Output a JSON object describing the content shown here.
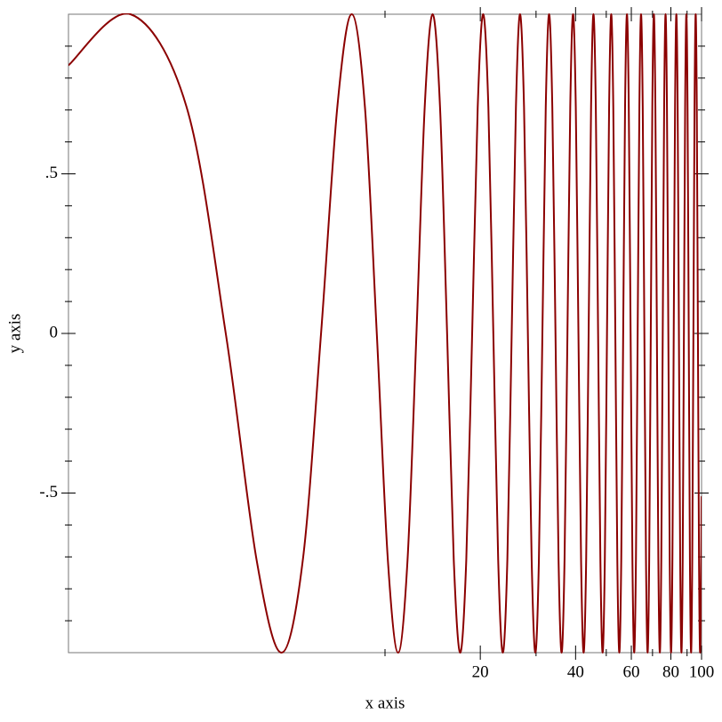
{
  "chart_data": {
    "type": "line",
    "xlabel": "x axis",
    "ylabel": "y axis",
    "xscale": "log",
    "color": "#8b0000",
    "xlim": [
      1,
      100
    ],
    "ylim": [
      -1,
      1
    ],
    "xticks": [
      20,
      40,
      60,
      80,
      100
    ],
    "xminorticks": [
      10,
      30,
      50,
      70,
      90
    ],
    "yticks": [
      {
        "value": -0.5,
        "label": "-.5"
      },
      0,
      {
        "value": 0.5,
        "label": ".5"
      }
    ],
    "yminorticks": [
      -0.9,
      -0.8,
      -0.7,
      -0.6,
      -0.4,
      -0.3,
      -0.2,
      -0.1,
      0.1,
      0.2,
      0.3,
      0.4,
      0.6,
      0.7,
      0.8,
      0.9
    ],
    "x": [
      1,
      1.57,
      2.36,
      3.14,
      3.93,
      4.71,
      5.5,
      6.28,
      7.07,
      7.85,
      8.64,
      9.42,
      10.21,
      11.0,
      11.78,
      12.57,
      13.35,
      14.14,
      14.92,
      15.71,
      16.49,
      17.28,
      18.06,
      18.85,
      19.63,
      20.42,
      21.21,
      21.99,
      22.78,
      23.56,
      24.35,
      25.13,
      25.92,
      26.7,
      27.49,
      28.27,
      29.06,
      29.85,
      30.63,
      31.42,
      32.2,
      32.99,
      33.77,
      34.56,
      35.34,
      36.13,
      36.91,
      37.7,
      38.48,
      39.27,
      40.06,
      40.84,
      41.63,
      42.41,
      43.2,
      43.98,
      44.77,
      45.55,
      46.34,
      47.12,
      47.91,
      48.69,
      49.48,
      50.27,
      51.05,
      51.84,
      52.62,
      53.41,
      54.19,
      54.98,
      55.76,
      56.55,
      57.33,
      58.12,
      58.9,
      59.69,
      60.48,
      61.26,
      62.05,
      62.83,
      63.62,
      64.4,
      65.19,
      65.97,
      66.76,
      67.54,
      68.33,
      69.12,
      69.9,
      70.69,
      71.47,
      72.26,
      73.04,
      73.83,
      74.61,
      75.4,
      76.18,
      76.97,
      77.75,
      78.54,
      79.33,
      80.11,
      80.9,
      81.68,
      82.47,
      83.25,
      84.04,
      84.82,
      85.61,
      86.39,
      87.18,
      87.96,
      88.75,
      89.54,
      90.32,
      91.11,
      91.89,
      92.68,
      93.46,
      94.25,
      95.03,
      95.82,
      96.6,
      97.39,
      98.17,
      98.96,
      99.75,
      100
    ],
    "values": [
      0.84,
      1,
      0.71,
      0,
      -0.71,
      -1,
      -0.71,
      0,
      0.71,
      1,
      0.71,
      0,
      -0.71,
      -1,
      -0.71,
      0,
      0.71,
      1,
      0.71,
      0,
      -0.71,
      -1,
      -0.71,
      0,
      0.71,
      1,
      0.71,
      0,
      -0.71,
      -1,
      -0.71,
      0,
      0.71,
      1,
      0.71,
      0,
      -0.71,
      -1,
      -0.71,
      0,
      0.71,
      1,
      0.71,
      0,
      -0.71,
      -1,
      -0.71,
      0,
      0.71,
      1,
      0.71,
      0,
      -0.71,
      -1,
      -0.71,
      0,
      0.71,
      1,
      0.71,
      0,
      -0.71,
      -1,
      -0.71,
      0,
      0.71,
      1,
      0.71,
      0,
      -0.71,
      -1,
      -0.71,
      0,
      0.71,
      1,
      0.71,
      0,
      -0.71,
      -1,
      -0.71,
      0,
      0.71,
      1,
      0.71,
      0,
      -0.71,
      -1,
      -0.71,
      0,
      0.71,
      1,
      0.71,
      0,
      -0.71,
      -1,
      -0.71,
      0,
      0.71,
      1,
      0.71,
      0,
      -0.71,
      -1,
      -0.71,
      0,
      0.71,
      1,
      0.71,
      0,
      -0.71,
      -1,
      -0.71,
      0,
      0.71,
      1,
      0.71,
      0,
      -0.71,
      -1,
      -0.71,
      0,
      0.71,
      1,
      0.71,
      0,
      -0.71,
      -1,
      -0.71,
      -0.51
    ]
  }
}
